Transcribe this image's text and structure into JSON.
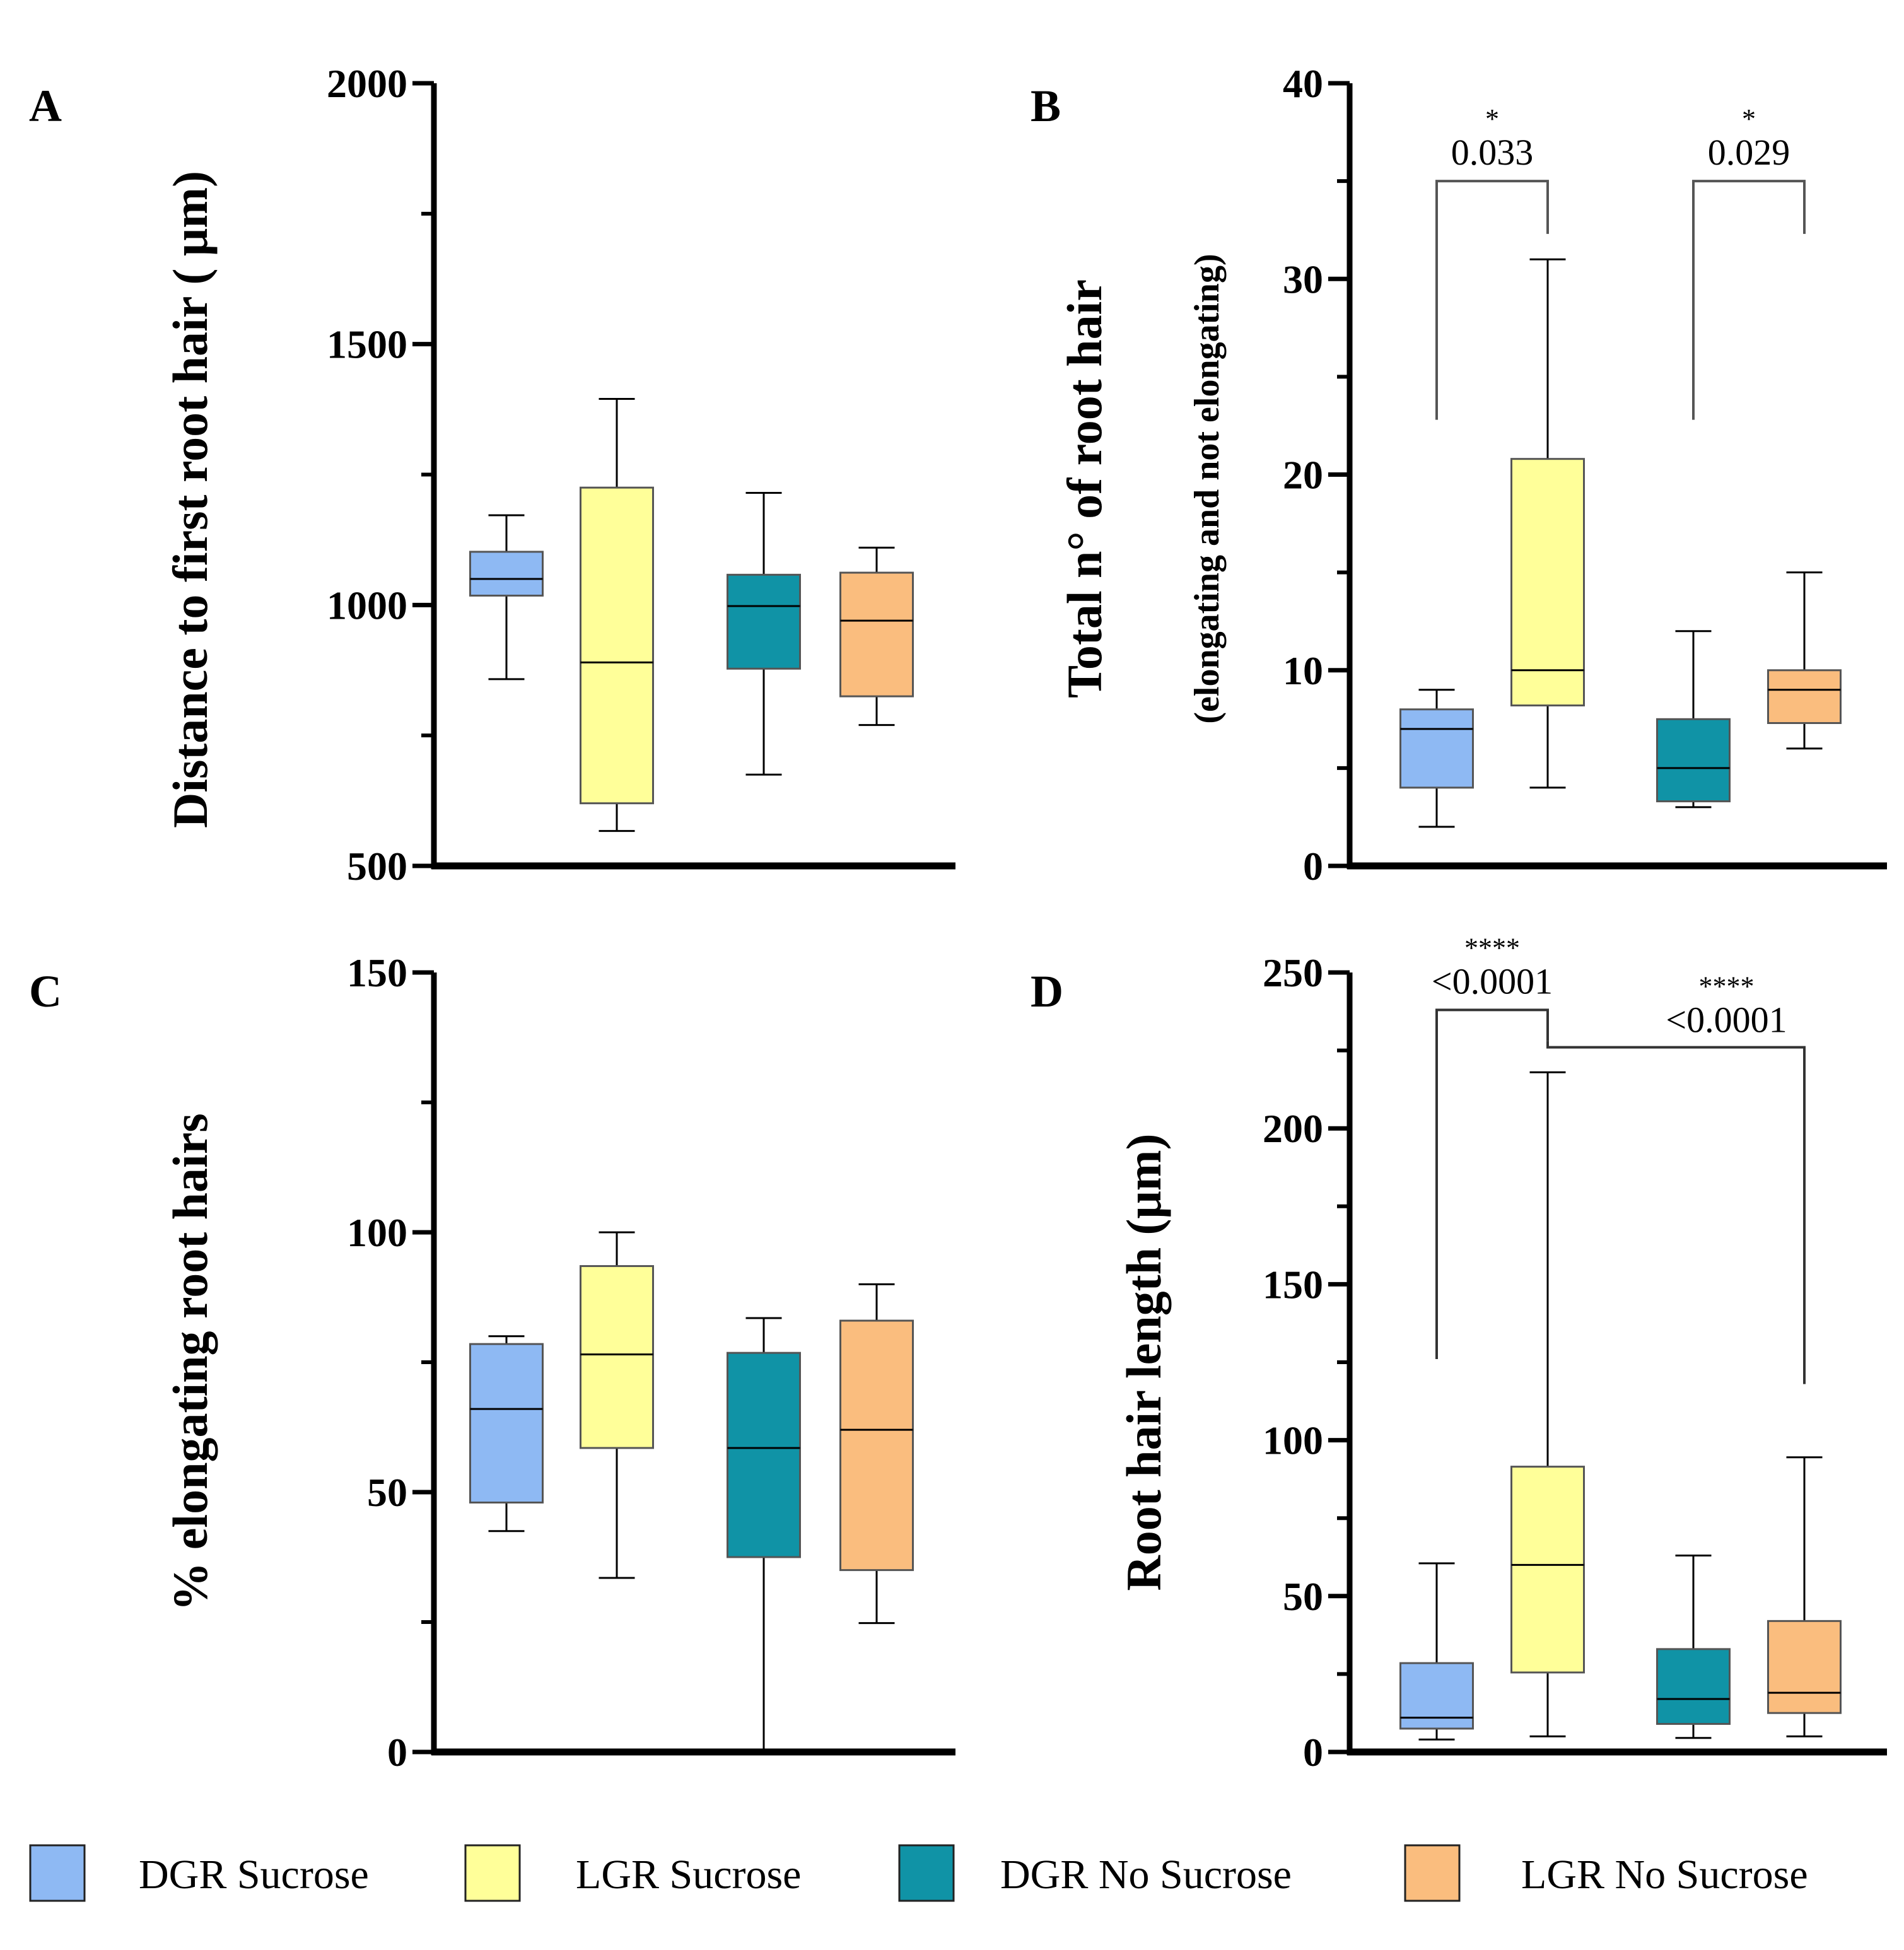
{
  "chart_data": [
    {
      "id": "A",
      "panel_label": "A",
      "type": "box",
      "ylabel": "Distance to first root hair ( μm)",
      "ylabel_sub": "",
      "ylim": [
        500,
        2000
      ],
      "yticks": [
        "2000",
        "1500",
        "1000",
        "500"
      ],
      "ytick_values": [
        2000,
        1500,
        1000,
        500
      ],
      "minor_ticks": [
        750,
        1250,
        1750
      ],
      "boxes": [
        {
          "group": "DGR Sucrose",
          "min": 858,
          "q1": 1018,
          "median": 1050,
          "q3": 1102,
          "max": 1172
        },
        {
          "group": "LGR Sucrose",
          "min": 567,
          "q1": 620,
          "median": 890,
          "q3": 1225,
          "max": 1395
        },
        {
          "group": "DGR No Sucrose",
          "min": 675,
          "q1": 878,
          "median": 998,
          "q3": 1058,
          "max": 1215
        },
        {
          "group": "LGR No Sucrose",
          "min": 770,
          "q1": 825,
          "median": 970,
          "q3": 1062,
          "max": 1110
        }
      ],
      "comparisons": []
    },
    {
      "id": "B",
      "panel_label": "B",
      "type": "box",
      "ylabel": "Total n° of root hair",
      "ylabel_sub": "(elongating and not elongating)",
      "ylim": [
        0,
        40
      ],
      "yticks": [
        "40",
        "30",
        "20",
        "10",
        "0"
      ],
      "ytick_values": [
        40,
        30,
        20,
        10,
        0
      ],
      "minor_ticks": [
        5,
        15,
        25,
        35
      ],
      "boxes": [
        {
          "group": "DGR Sucrose",
          "min": 2,
          "q1": 4,
          "median": 7,
          "q3": 8,
          "max": 9
        },
        {
          "group": "LGR Sucrose",
          "min": 4,
          "q1": 8.2,
          "median": 10,
          "q3": 20.8,
          "max": 31
        },
        {
          "group": "DGR No Sucrose",
          "min": 3,
          "q1": 3.3,
          "median": 5,
          "q3": 7.5,
          "max": 12
        },
        {
          "group": "LGR No Sucrose",
          "min": 6,
          "q1": 7.3,
          "median": 9,
          "q3": 10,
          "max": 15
        }
      ],
      "comparisons": [
        {
          "from": 0,
          "to": 1,
          "stars": "*",
          "p": "0.033",
          "bracket_y": 35,
          "left_end": 22.8,
          "right_end": 32.3
        },
        {
          "from": 2,
          "to": 3,
          "stars": "*",
          "p": "0.029",
          "bracket_y": 35,
          "left_end": 22.8,
          "right_end": 32.3
        }
      ]
    },
    {
      "id": "C",
      "panel_label": "C",
      "type": "box",
      "ylabel": "% elongating root hairs",
      "ylabel_sub": "",
      "ylim": [
        0,
        150
      ],
      "yticks": [
        "150",
        "100",
        "50",
        "0"
      ],
      "ytick_values": [
        150,
        100,
        50,
        0
      ],
      "minor_ticks": [
        25,
        75,
        125
      ],
      "boxes": [
        {
          "group": "DGR Sucrose",
          "min": 42.5,
          "q1": 48,
          "median": 66,
          "q3": 78.5,
          "max": 80
        },
        {
          "group": "LGR Sucrose",
          "min": 33.5,
          "q1": 58.5,
          "median": 76.5,
          "q3": 93.5,
          "max": 100
        },
        {
          "group": "DGR No Sucrose",
          "min": 0,
          "q1": 37.5,
          "median": 58.5,
          "q3": 76.8,
          "max": 83.5
        },
        {
          "group": "LGR No Sucrose",
          "min": 24.8,
          "q1": 35,
          "median": 62,
          "q3": 83,
          "max": 90
        }
      ],
      "comparisons": []
    },
    {
      "id": "D",
      "panel_label": "D",
      "type": "box",
      "ylabel": "Root hair length (μm)",
      "ylabel_sub": "",
      "ylim": [
        0,
        250
      ],
      "yticks": [
        "250",
        "200",
        "150",
        "100",
        "50",
        "0"
      ],
      "ytick_values": [
        250,
        200,
        150,
        100,
        50,
        0
      ],
      "minor_ticks": [
        25,
        75,
        125,
        175,
        225
      ],
      "boxes": [
        {
          "group": "DGR Sucrose",
          "min": 4,
          "q1": 7.5,
          "median": 11,
          "q3": 28.5,
          "max": 60.5
        },
        {
          "group": "LGR Sucrose",
          "min": 5,
          "q1": 25.5,
          "median": 60,
          "q3": 91.5,
          "max": 218
        },
        {
          "group": "DGR No Sucrose",
          "min": 4.5,
          "q1": 9,
          "median": 17,
          "q3": 33,
          "max": 63
        },
        {
          "group": "LGR No Sucrose",
          "min": 5,
          "q1": 12.5,
          "median": 19,
          "q3": 42,
          "max": 94.5
        }
      ],
      "comparisons": [
        {
          "from": 0,
          "to": 1,
          "stars": "****",
          "p": "<0.0001",
          "bracket_y": 238,
          "left_end": 126,
          "right_end": 228
        },
        {
          "from": 1,
          "to": 3,
          "stars": "****",
          "p": "<0.0001",
          "bracket_y": 226,
          "left_end": 228,
          "right_end": 118
        }
      ]
    }
  ],
  "legend": [
    {
      "label": "DGR Sucrose",
      "color": "#8EB9F3"
    },
    {
      "label": "LGR Sucrose",
      "color": "#FFFF99"
    },
    {
      "label": "DGR No Sucrose",
      "color": "#1093A6"
    },
    {
      "label": "LGR No Sucrose",
      "color": "#FABD7E"
    }
  ]
}
